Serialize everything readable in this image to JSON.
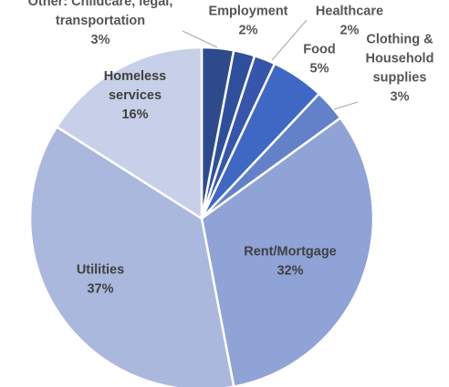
{
  "chart_data": {
    "type": "pie",
    "title": "",
    "slices": [
      {
        "name": "Other: Childcare, legal, transportation",
        "lines": [
          "Other: Childcare, legal,",
          "transportation"
        ],
        "value": 3,
        "label": "3%",
        "color": "#2e4a8b"
      },
      {
        "name": "Employment",
        "lines": [
          "Employment"
        ],
        "value": 2,
        "label": "2%",
        "color": "#2f4f9c"
      },
      {
        "name": "Healthcare",
        "lines": [
          "Healthcare"
        ],
        "value": 2,
        "label": "2%",
        "color": "#3656ad"
      },
      {
        "name": "Food",
        "lines": [
          "Food"
        ],
        "value": 5,
        "label": "5%",
        "color": "#3f68c4"
      },
      {
        "name": "Clothing & Household supplies",
        "lines": [
          "Clothing &",
          "Household",
          "supplies"
        ],
        "value": 3,
        "label": "3%",
        "color": "#6381c8"
      },
      {
        "name": "Rent/Mortgage",
        "lines": [
          "Rent/Mortgage"
        ],
        "value": 32,
        "label": "32%",
        "color": "#8fa3d6"
      },
      {
        "name": "Utilities",
        "lines": [
          "Utilities"
        ],
        "value": 37,
        "label": "37%",
        "color": "#aab8de"
      },
      {
        "name": "Homeless services",
        "lines": [
          "Homeless",
          "services"
        ],
        "value": 16,
        "label": "16%",
        "color": "#c7d0e8"
      }
    ]
  }
}
